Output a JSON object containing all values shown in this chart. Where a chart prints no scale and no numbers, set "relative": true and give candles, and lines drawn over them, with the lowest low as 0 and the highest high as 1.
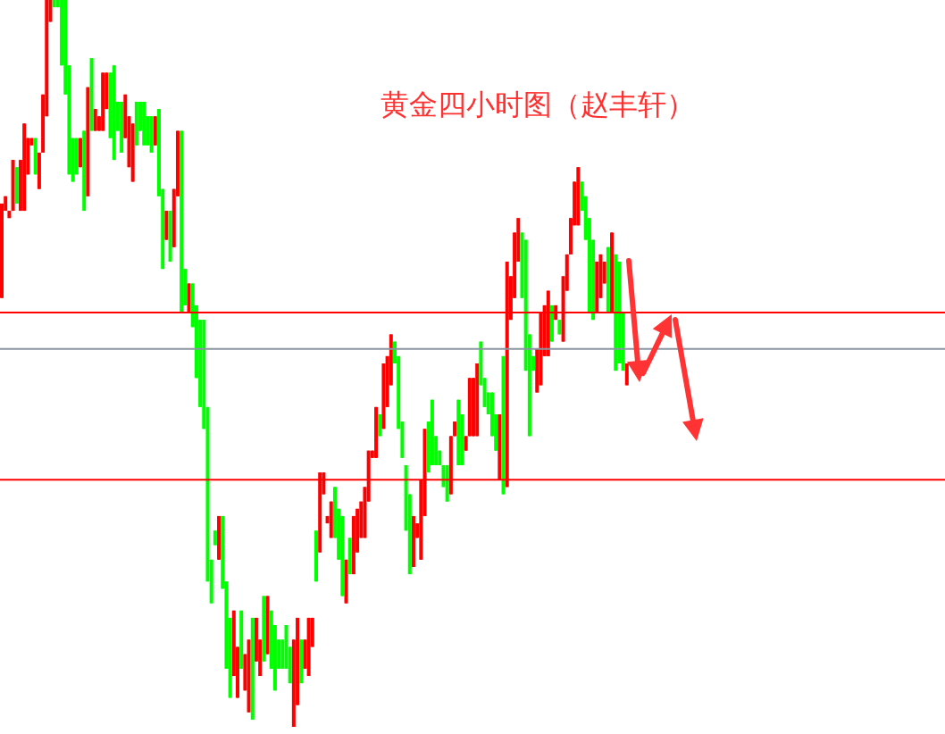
{
  "chart_data": {
    "type": "candlestick",
    "title": "黄金四小时图（赵丰轩）",
    "relative": true,
    "categories": [
      null,
      null,
      null,
      null,
      null,
      null,
      null,
      null,
      null,
      null,
      null,
      null,
      null,
      null,
      null,
      null,
      null,
      null,
      null,
      null,
      null,
      null,
      null,
      null,
      null,
      null,
      null,
      null,
      null,
      null,
      null,
      null,
      null,
      null,
      null,
      null,
      null,
      null,
      null,
      null,
      null,
      null,
      null,
      null,
      null,
      null,
      null,
      null,
      null,
      null,
      null,
      null,
      null,
      null,
      null,
      null,
      null,
      null,
      null,
      null,
      null,
      null,
      null,
      null,
      null,
      null,
      null,
      null,
      null,
      null,
      null,
      null,
      null,
      null,
      null,
      null,
      null,
      null,
      null,
      null,
      null,
      null,
      null,
      null,
      null,
      null,
      null,
      null,
      null,
      null,
      null,
      null,
      null,
      null,
      null,
      null,
      null,
      null,
      null,
      null,
      null,
      null,
      null,
      null,
      null,
      null,
      null,
      null,
      null,
      null,
      null,
      null,
      null,
      null,
      null,
      null,
      null,
      null,
      null,
      null,
      null,
      null,
      null,
      null,
      null,
      null,
      null,
      null,
      null,
      null,
      null,
      null,
      null,
      null,
      null,
      null,
      null,
      null,
      null,
      null,
      null,
      null,
      null,
      null,
      null,
      null,
      null,
      null,
      null,
      null,
      null,
      null,
      null,
      null,
      null,
      null,
      null,
      null,
      null,
      null,
      null,
      null,
      null,
      null,
      null,
      null,
      null,
      null
    ],
    "ohlc": [
      [
        0.59,
        0.72,
        0.59,
        0.72
      ],
      [
        0.71,
        0.73,
        0.71,
        0.73
      ],
      [
        0.7,
        0.71,
        0.7,
        0.71
      ],
      [
        0.71,
        0.78,
        0.71,
        0.78
      ],
      [
        0.77,
        0.77,
        0.72,
        0.72
      ],
      [
        0.71,
        0.78,
        0.71,
        0.78
      ],
      [
        0.71,
        0.83,
        0.71,
        0.83
      ],
      [
        0.76,
        0.81,
        0.76,
        0.81
      ],
      [
        0.8,
        0.81,
        0.8,
        0.81
      ],
      [
        0.81,
        0.81,
        0.76,
        0.76
      ],
      [
        0.74,
        0.79,
        0.74,
        0.79
      ],
      [
        0.79,
        0.87,
        0.79,
        0.87
      ],
      [
        0.84,
        1,
        0.84,
        1
      ],
      [
        0.97,
        1,
        0.97,
        1
      ],
      [
        1,
        1,
        0.99,
        0.99
      ],
      [
        1,
        1,
        0.99,
        0.99
      ],
      [
        1,
        1,
        0.91,
        0.91
      ],
      [
        1,
        1,
        0.87,
        0.87
      ],
      [
        0.91,
        0.91,
        0.76,
        0.76
      ],
      [
        0.81,
        0.81,
        0.75,
        0.75
      ],
      [
        0.81,
        0.81,
        0.76,
        0.76
      ],
      [
        0.77,
        0.81,
        0.77,
        0.81
      ],
      [
        0.82,
        0.82,
        0.71,
        0.71
      ],
      [
        0.73,
        0.88,
        0.73,
        0.88
      ],
      [
        0.92,
        0.92,
        0.82,
        0.82
      ],
      [
        0.82,
        0.85,
        0.82,
        0.85
      ],
      [
        0.82,
        0.84,
        0.82,
        0.84
      ],
      [
        0.82,
        0.9,
        0.82,
        0.9
      ],
      [
        0.85,
        0.9,
        0.85,
        0.9
      ],
      [
        0.9,
        0.9,
        0.81,
        0.81
      ],
      [
        0.91,
        0.91,
        0.78,
        0.78
      ],
      [
        0.86,
        0.86,
        0.82,
        0.82
      ],
      [
        0.86,
        0.86,
        0.79,
        0.79
      ],
      [
        0.81,
        0.87,
        0.81,
        0.87
      ],
      [
        0.77,
        0.84,
        0.77,
        0.84
      ],
      [
        0.75,
        0.83,
        0.75,
        0.83
      ],
      [
        0.86,
        0.86,
        0.8,
        0.8
      ],
      [
        0.86,
        0.86,
        0.82,
        0.82
      ],
      [
        0.86,
        0.86,
        0.8,
        0.8
      ],
      [
        0.84,
        0.84,
        0.8,
        0.8
      ],
      [
        0.84,
        0.84,
        0.79,
        0.79
      ],
      [
        0.8,
        0.84,
        0.8,
        0.84
      ],
      [
        0.85,
        0.85,
        0.73,
        0.73
      ],
      [
        0.74,
        0.74,
        0.63,
        0.63
      ],
      [
        0.67,
        0.71,
        0.67,
        0.71
      ],
      [
        0.71,
        0.71,
        0.64,
        0.64
      ],
      [
        0.66,
        0.74,
        0.66,
        0.74
      ],
      [
        0.73,
        0.82,
        0.73,
        0.82
      ],
      [
        0.82,
        0.82,
        0.57,
        0.57
      ],
      [
        0.63,
        0.63,
        0.58,
        0.58
      ],
      [
        0.57,
        0.61,
        0.57,
        0.61
      ],
      [
        0.61,
        0.61,
        0.55,
        0.55
      ],
      [
        0.58,
        0.58,
        0.48,
        0.48
      ],
      [
        0.56,
        0.56,
        0.44,
        0.44
      ],
      [
        0.56,
        0.56,
        0.41,
        0.41
      ],
      [
        0.44,
        0.44,
        0.2,
        0.2
      ],
      [
        0.23,
        0.23,
        0.17,
        0.17
      ],
      [
        0.27,
        0.27,
        0.25,
        0.25
      ],
      [
        0.23,
        0.29,
        0.23,
        0.29
      ],
      [
        0.29,
        0.29,
        0.19,
        0.19
      ],
      [
        0.2,
        0.2,
        0.08,
        0.08
      ],
      [
        0.15,
        0.15,
        0.04,
        0.04
      ],
      [
        0.07,
        0.16,
        0.07,
        0.16
      ],
      [
        0.04,
        0.11,
        0.04,
        0.11
      ],
      [
        0.16,
        0.16,
        0.08,
        0.08
      ],
      [
        0.05,
        0.1,
        0.05,
        0.1
      ],
      [
        0.02,
        0.12,
        0.02,
        0.12
      ],
      [
        0.15,
        0.15,
        0.01,
        0.01
      ],
      [
        0.09,
        0.15,
        0.09,
        0.15
      ],
      [
        0.07,
        0.12,
        0.07,
        0.12
      ],
      [
        0.18,
        0.18,
        0.09,
        0.09
      ],
      [
        0.1,
        0.18,
        0.1,
        0.18
      ],
      [
        0.16,
        0.16,
        0.08,
        0.08
      ],
      [
        0.14,
        0.14,
        0.05,
        0.05
      ],
      [
        0.12,
        0.12,
        0.08,
        0.08
      ],
      [
        0.12,
        0.12,
        0.08,
        0.08
      ],
      [
        0.14,
        0.14,
        0.08,
        0.08
      ],
      [
        0.11,
        0.11,
        0.06,
        0.06
      ],
      [
        0,
        0.12,
        0,
        0.12
      ],
      [
        0.03,
        0.15,
        0.03,
        0.15
      ],
      [
        0.12,
        0.12,
        0.06,
        0.06
      ],
      [
        0.08,
        0.12,
        0.08,
        0.12
      ],
      [
        0.07,
        0.15,
        0.07,
        0.15
      ],
      [
        0.11,
        0.15,
        0.11,
        0.15
      ],
      [
        0.27,
        0.27,
        0.2,
        0.2
      ],
      [
        0.24,
        0.35,
        0.24,
        0.35
      ],
      [
        0.32,
        0.35,
        0.32,
        0.35
      ],
      [
        0.28,
        0.29,
        0.28,
        0.29
      ],
      [
        0.26,
        0.31,
        0.26,
        0.31
      ],
      [
        0.33,
        0.33,
        0.26,
        0.26
      ],
      [
        0.3,
        0.3,
        0.23,
        0.23
      ],
      [
        0.29,
        0.29,
        0.18,
        0.18
      ],
      [
        0.17,
        0.23,
        0.17,
        0.23
      ],
      [
        0.26,
        0.26,
        0.21,
        0.21
      ],
      [
        0.21,
        0.29,
        0.21,
        0.29
      ],
      [
        0.24,
        0.3,
        0.24,
        0.3
      ],
      [
        0.26,
        0.31,
        0.26,
        0.31
      ],
      [
        0.26,
        0.33,
        0.26,
        0.33
      ],
      [
        0.31,
        0.38,
        0.31,
        0.38
      ],
      [
        0.37,
        0.38,
        0.37,
        0.38
      ],
      [
        0.37,
        0.44,
        0.37,
        0.44
      ],
      [
        0.43,
        0.43,
        0.4,
        0.4
      ],
      [
        0.41,
        0.5,
        0.41,
        0.5
      ],
      [
        0.44,
        0.51,
        0.44,
        0.51
      ],
      [
        0.47,
        0.54,
        0.47,
        0.54
      ],
      [
        0.53,
        0.53,
        0.5,
        0.5
      ],
      [
        0.51,
        0.51,
        0.41,
        0.41
      ],
      [
        0.42,
        0.42,
        0.37,
        0.37
      ],
      [
        0.36,
        0.36,
        0.27,
        0.27
      ],
      [
        0.32,
        0.32,
        0.21,
        0.21
      ],
      [
        0.22,
        0.29,
        0.22,
        0.29
      ],
      [
        0.26,
        0.28,
        0.26,
        0.28
      ],
      [
        0.23,
        0.34,
        0.23,
        0.34
      ],
      [
        0.29,
        0.41,
        0.29,
        0.41
      ],
      [
        0.42,
        0.42,
        0.35,
        0.35
      ],
      [
        0.45,
        0.45,
        0.36,
        0.36
      ],
      [
        0.4,
        0.4,
        0.36,
        0.36
      ],
      [
        0.38,
        0.38,
        0.36,
        0.36
      ],
      [
        0.36,
        0.36,
        0.33,
        0.33
      ],
      [
        0.36,
        0.36,
        0.31,
        0.31
      ],
      [
        0.32,
        0.4,
        0.32,
        0.4
      ],
      [
        0.4,
        0.42,
        0.4,
        0.42
      ],
      [
        0.45,
        0.45,
        0.36,
        0.36
      ],
      [
        0.43,
        0.43,
        0.36,
        0.36
      ],
      [
        0.38,
        0.4,
        0.38,
        0.4
      ],
      [
        0.4,
        0.48,
        0.4,
        0.48
      ],
      [
        0.4,
        0.48,
        0.4,
        0.48
      ],
      [
        0.4,
        0.5,
        0.4,
        0.5
      ],
      [
        0.53,
        0.53,
        0.47,
        0.47
      ],
      [
        0.48,
        0.48,
        0.44,
        0.44
      ],
      [
        0.46,
        0.46,
        0.43,
        0.43
      ],
      [
        0.46,
        0.46,
        0.4,
        0.4
      ],
      [
        0.43,
        0.43,
        0.38,
        0.38
      ],
      [
        0.34,
        0.43,
        0.34,
        0.43
      ],
      [
        0.51,
        0.51,
        0.32,
        0.32
      ],
      [
        0.33,
        0.64,
        0.33,
        0.64
      ],
      [
        0.56,
        0.62,
        0.56,
        0.62
      ],
      [
        0.59,
        0.68,
        0.59,
        0.68
      ],
      [
        0.64,
        0.7,
        0.64,
        0.7
      ],
      [
        0.68,
        0.68,
        0.59,
        0.59
      ],
      [
        0.67,
        0.67,
        0.49,
        0.49
      ],
      [
        0.54,
        0.54,
        0.4,
        0.4
      ],
      [
        0.51,
        0.51,
        0.49,
        0.49
      ],
      [
        0.46,
        0.52,
        0.46,
        0.52
      ],
      [
        0.47,
        0.57,
        0.47,
        0.57
      ],
      [
        0.51,
        0.58,
        0.51,
        0.58
      ],
      [
        0.51,
        0.6,
        0.51,
        0.6
      ],
      [
        0.58,
        0.58,
        0.53,
        0.53
      ],
      [
        0.56,
        0.58,
        0.56,
        0.58
      ],
      [
        0.56,
        0.56,
        0.54,
        0.54
      ],
      [
        0.53,
        0.62,
        0.53,
        0.62
      ],
      [
        0.6,
        0.65,
        0.6,
        0.65
      ],
      [
        0.65,
        0.7,
        0.65,
        0.7
      ],
      [
        0.69,
        0.75,
        0.69,
        0.75
      ],
      [
        0.69,
        0.77,
        0.69,
        0.77
      ],
      [
        0.75,
        0.75,
        0.71,
        0.71
      ],
      [
        0.73,
        0.73,
        0.67,
        0.67
      ],
      [
        0.7,
        0.7,
        0.57,
        0.57
      ],
      [
        0.67,
        0.67,
        0.56,
        0.56
      ],
      [
        0.57,
        0.64,
        0.57,
        0.64
      ],
      [
        0.59,
        0.65,
        0.59,
        0.65
      ],
      [
        0.61,
        0.64,
        0.61,
        0.64
      ],
      [
        0.66,
        0.66,
        0.57,
        0.57
      ],
      [
        0.57,
        0.68,
        0.57,
        0.68
      ],
      [
        0.65,
        0.65,
        0.49,
        0.49
      ],
      [
        0.64,
        0.64,
        0.5,
        0.5
      ],
      [
        0.57,
        0.57,
        0.49,
        0.49
      ],
      [
        0.47,
        0.5,
        0.47,
        0.5
      ]
    ],
    "colors": [
      "#ff0000",
      "#ff0000",
      "#ff0000",
      "#ff0000",
      "#00ff00",
      "#ff0000",
      "#ff0000",
      "#ff0000",
      "#ff0000",
      "#00ff00",
      "#ff0000",
      "#ff0000",
      "#ff0000",
      "#ff0000",
      "#00ff00",
      "#00ff00",
      "#00ff00",
      "#00ff00",
      "#00ff00",
      "#00ff00",
      "#00ff00",
      "#ff0000",
      "#00ff00",
      "#ff0000",
      "#00ff00",
      "#ff0000",
      "#ff0000",
      "#ff0000",
      "#ff0000",
      "#00ff00",
      "#00ff00",
      "#00ff00",
      "#00ff00",
      "#ff0000",
      "#ff0000",
      "#ff0000",
      "#00ff00",
      "#00ff00",
      "#00ff00",
      "#00ff00",
      "#00ff00",
      "#ff0000",
      "#00ff00",
      "#00ff00",
      "#ff0000",
      "#00ff00",
      "#ff0000",
      "#ff0000",
      "#00ff00",
      "#00ff00",
      "#ff0000",
      "#00ff00",
      "#00ff00",
      "#00ff00",
      "#00ff00",
      "#00ff00",
      "#00ff00",
      "#00ff00",
      "#ff0000",
      "#00ff00",
      "#00ff00",
      "#00ff00",
      "#ff0000",
      "#ff0000",
      "#00ff00",
      "#ff0000",
      "#ff0000",
      "#00ff00",
      "#ff0000",
      "#ff0000",
      "#00ff00",
      "#ff0000",
      "#00ff00",
      "#00ff00",
      "#00ff00",
      "#00ff00",
      "#00ff00",
      "#00ff00",
      "#ff0000",
      "#ff0000",
      "#00ff00",
      "#ff0000",
      "#ff0000",
      "#ff0000",
      "#00ff00",
      "#ff0000",
      "#ff0000",
      "#ff0000",
      "#ff0000",
      "#00ff00",
      "#00ff00",
      "#00ff00",
      "#ff0000",
      "#00ff00",
      "#ff0000",
      "#ff0000",
      "#ff0000",
      "#ff0000",
      "#ff0000",
      "#ff0000",
      "#ff0000",
      "#00ff00",
      "#ff0000",
      "#ff0000",
      "#ff0000",
      "#00ff00",
      "#00ff00",
      "#00ff00",
      "#00ff00",
      "#00ff00",
      "#ff0000",
      "#ff0000",
      "#ff0000",
      "#ff0000",
      "#00ff00",
      "#00ff00",
      "#00ff00",
      "#00ff00",
      "#00ff00",
      "#00ff00",
      "#ff0000",
      "#ff0000",
      "#00ff00",
      "#00ff00",
      "#ff0000",
      "#ff0000",
      "#ff0000",
      "#ff0000",
      "#00ff00",
      "#00ff00",
      "#00ff00",
      "#00ff00",
      "#00ff00",
      "#ff0000",
      "#00ff00",
      "#ff0000",
      "#ff0000",
      "#ff0000",
      "#ff0000",
      "#00ff00",
      "#00ff00",
      "#00ff00",
      "#00ff00",
      "#ff0000",
      "#ff0000",
      "#ff0000",
      "#ff0000",
      "#00ff00",
      "#ff0000",
      "#00ff00",
      "#ff0000",
      "#ff0000",
      "#ff0000",
      "#ff0000",
      "#ff0000",
      "#00ff00",
      "#00ff00",
      "#00ff00",
      "#00ff00",
      "#ff0000",
      "#ff0000",
      "#ff0000",
      "#00ff00",
      "#ff0000",
      "#00ff00",
      "#00ff00",
      "#00ff00",
      "#ff0000"
    ],
    "ref_lines": [
      {
        "axis": "y",
        "value": 0.57,
        "color": "#ff0000"
      },
      {
        "axis": "y",
        "value": 0.52,
        "color": "#8a94a0"
      },
      {
        "axis": "y",
        "value": 0.34,
        "color": "#ff0000"
      }
    ]
  }
}
